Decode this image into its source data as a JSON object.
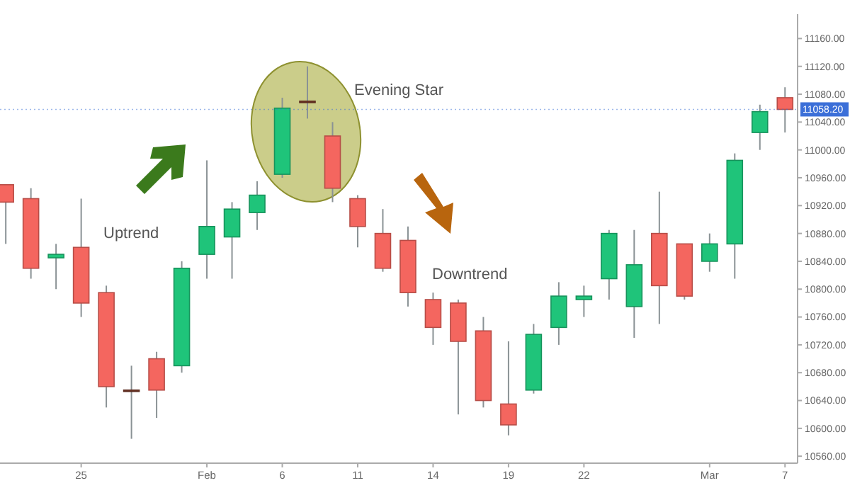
{
  "chart_data": {
    "type": "candlestick",
    "categories": [
      null,
      null,
      null,
      "25",
      null,
      null,
      null,
      null,
      "Feb",
      null,
      null,
      "6",
      null,
      null,
      "11",
      null,
      null,
      "14",
      null,
      null,
      "19",
      null,
      null,
      "22",
      null,
      null,
      null,
      null,
      "Mar",
      null,
      null,
      "7"
    ],
    "ohlc": [
      [
        10950,
        10950,
        10865,
        10925
      ],
      [
        10930,
        10945,
        10815,
        10830
      ],
      [
        10845,
        10865,
        10800,
        10850
      ],
      [
        10860,
        10930,
        10760,
        10780
      ],
      [
        10795,
        10805,
        10630,
        10660
      ],
      [
        10655,
        10690,
        10585,
        10655
      ],
      [
        10700,
        10710,
        10615,
        10655
      ],
      [
        10690,
        10840,
        10680,
        10830
      ],
      [
        10850,
        10985,
        10815,
        10890
      ],
      [
        10875,
        10925,
        10815,
        10915
      ],
      [
        10910,
        10955,
        10885,
        10935
      ],
      [
        10965,
        11075,
        10960,
        11060
      ],
      [
        11070,
        11120,
        11045,
        11070
      ],
      [
        11020,
        11040,
        10925,
        10945
      ],
      [
        10930,
        10935,
        10860,
        10890
      ],
      [
        10880,
        10915,
        10825,
        10830
      ],
      [
        10870,
        10890,
        10775,
        10795
      ],
      [
        10785,
        10795,
        10720,
        10745
      ],
      [
        10780,
        10785,
        10620,
        10725
      ],
      [
        10740,
        10760,
        10630,
        10640
      ],
      [
        10635,
        10725,
        10590,
        10605
      ],
      [
        10655,
        10750,
        10650,
        10735
      ],
      [
        10745,
        10810,
        10720,
        10790
      ],
      [
        10785,
        10805,
        10760,
        10790
      ],
      [
        10815,
        10885,
        10785,
        10880
      ],
      [
        10775,
        10885,
        10730,
        10835
      ],
      [
        10880,
        10940,
        10750,
        10805
      ],
      [
        10865,
        10865,
        10785,
        10790
      ],
      [
        10840,
        10880,
        10825,
        10865
      ],
      [
        10865,
        10995,
        10815,
        10985
      ],
      [
        11025,
        11065,
        11000,
        11055
      ],
      [
        11075,
        11090,
        11025,
        11058.2
      ]
    ],
    "colors": [
      "#f4665f",
      "#f4665f",
      "#1fc47a",
      "#f4665f",
      "#f4665f",
      "#7a3b2a",
      "#f4665f",
      "#1fc47a",
      "#1fc47a",
      "#1fc47a",
      "#1fc47a",
      "#1fc47a",
      "#7a3b2a",
      "#f4665f",
      "#f4665f",
      "#f4665f",
      "#f4665f",
      "#f4665f",
      "#f4665f",
      "#f4665f",
      "#f4665f",
      "#1fc47a",
      "#1fc47a",
      "#1fc47a",
      "#1fc47a",
      "#1fc47a",
      "#f4665f",
      "#f4665f",
      "#1fc47a",
      "#1fc47a",
      "#1fc47a",
      "#f4665f"
    ],
    "ylim": [
      10550,
      11195
    ],
    "yticks": [
      {
        "value": 10560,
        "label": "10560.00"
      },
      {
        "value": 10600,
        "label": "10600.00"
      },
      {
        "value": 10640,
        "label": "10640.00"
      },
      {
        "value": 10680,
        "label": "10680.00"
      },
      {
        "value": 10720,
        "label": "10720.00"
      },
      {
        "value": 10760,
        "label": "10760.00"
      },
      {
        "value": 10800,
        "label": "10800.00"
      },
      {
        "value": 10840,
        "label": "10840.00"
      },
      {
        "value": 10880,
        "label": "10880.00"
      },
      {
        "value": 10920,
        "label": "10920.00"
      },
      {
        "value": 10960,
        "label": "10960.00"
      },
      {
        "value": 11000,
        "label": "11000.00"
      },
      {
        "value": 11040,
        "label": "11040.00"
      },
      {
        "value": 11080,
        "label": "11080.00"
      },
      {
        "value": 11120,
        "label": "11120.00"
      },
      {
        "value": 11160,
        "label": "11160.00"
      }
    ],
    "ref_lines": [
      {
        "axis": "y",
        "value": 11058.2,
        "label": "11058.20",
        "color": "#3b6fd8"
      }
    ],
    "annotations": [
      "Uptrend",
      "Evening Star",
      "Downtrend"
    ],
    "grid": false
  }
}
